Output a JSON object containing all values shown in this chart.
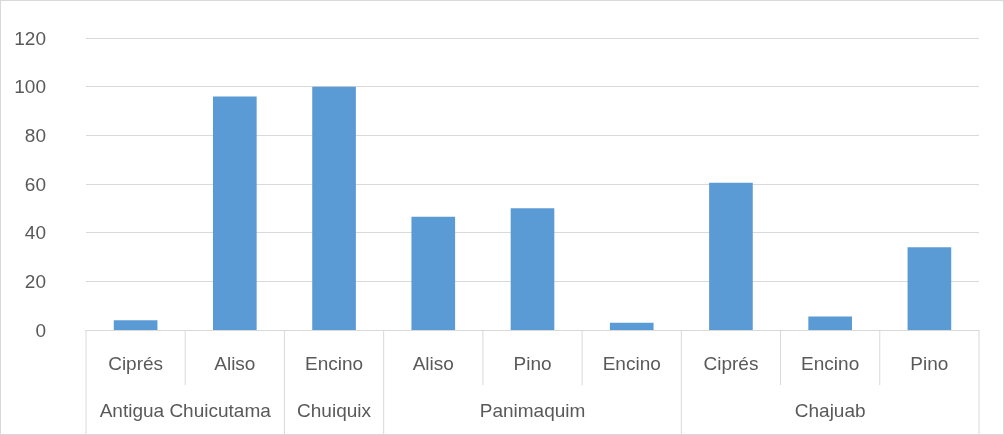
{
  "chart_data": {
    "type": "bar",
    "categories": [
      "Ciprés",
      "Aliso",
      "Encino",
      "Aliso",
      "Pino",
      "Encino",
      "Ciprés",
      "Encino",
      "Pino"
    ],
    "values": [
      4,
      96,
      100,
      46.5,
      50,
      3,
      60.5,
      5.5,
      34
    ],
    "color": "#5b9bd5",
    "ylim": [
      0,
      120
    ],
    "yticks": [
      0,
      20,
      40,
      60,
      80,
      100,
      120
    ],
    "grid": "y",
    "annotations": [
      "Antigua Chuicutama",
      "Chuiquix",
      "Panimaquim",
      "Chajuab"
    ]
  }
}
